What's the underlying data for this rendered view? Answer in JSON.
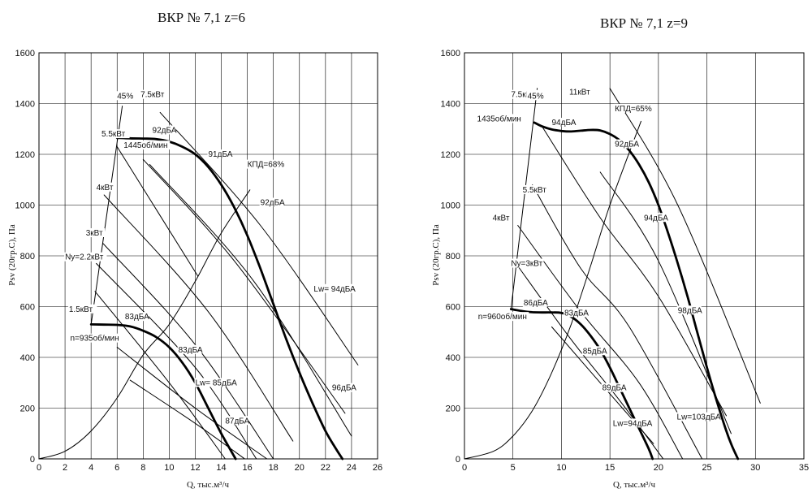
{
  "chart_data": [
    {
      "type": "line",
      "title": "ВКР № 7,1 z=6",
      "xlabel": "Q, тыс.м³/ч",
      "ylabel": "Psv (20гр.С), Па",
      "xlim": [
        0,
        26
      ],
      "ylim": [
        0,
        1600
      ],
      "xticks": [
        0,
        2,
        4,
        6,
        8,
        10,
        12,
        14,
        16,
        18,
        20,
        22,
        24,
        26
      ],
      "yticks": [
        0,
        200,
        400,
        600,
        800,
        1000,
        1200,
        1400,
        1600
      ],
      "grid": true,
      "series": [
        {
          "name": "1445об/мин",
          "style": "bold",
          "x": [
            6.0,
            7,
            8,
            9,
            10,
            11,
            12,
            13,
            14,
            15,
            16,
            17,
            18,
            19,
            20,
            21,
            22,
            22.8,
            23.3
          ],
          "y": [
            1265,
            1263,
            1262,
            1260,
            1250,
            1230,
            1200,
            1150,
            1080,
            990,
            880,
            750,
            610,
            470,
            340,
            220,
            110,
            40,
            0
          ]
        },
        {
          "name": "n=935об/мин",
          "style": "bold",
          "x": [
            4.0,
            5,
            6,
            7,
            8,
            9,
            10,
            11,
            12,
            13,
            14,
            15.1
          ],
          "y": [
            530,
            529,
            528,
            522,
            505,
            480,
            440,
            380,
            300,
            200,
            100,
            0
          ]
        },
        {
          "name": "КПД=68%",
          "style": "thin",
          "x": [
            0,
            2,
            4,
            6,
            8,
            10,
            12,
            14,
            16.2
          ],
          "y": [
            0,
            30,
            110,
            240,
            410,
            530,
            700,
            890,
            1060
          ]
        },
        {
          "name": "45%",
          "style": "thin",
          "x": [
            4.0,
            6.4
          ],
          "y": [
            530,
            1390
          ]
        },
        {
          "name": "5.5кВт",
          "style": "thin",
          "x": [
            6.0,
            12.2
          ],
          "y": [
            1230,
            720
          ]
        },
        {
          "name": "7.5кВт",
          "style": "thin",
          "x": [
            9.3,
            17.0,
            24.5
          ],
          "y": [
            1365,
            920,
            370
          ]
        },
        {
          "name": "4кВт",
          "style": "thin",
          "x": [
            5.0,
            13.0,
            19.5
          ],
          "y": [
            1040,
            580,
            70
          ]
        },
        {
          "name": "3кВт",
          "style": "thin",
          "x": [
            4.9,
            12.0,
            18.0
          ],
          "y": [
            850,
            450,
            0
          ]
        },
        {
          "name": "Ny=2.2кВт",
          "style": "thin",
          "x": [
            4.4,
            12.0,
            16.7
          ],
          "y": [
            770,
            360,
            0
          ]
        },
        {
          "name": "1.5кВт",
          "style": "thin",
          "x": [
            4.3,
            10.0,
            14.3
          ],
          "y": [
            660,
            300,
            0
          ]
        },
        {
          "name": "Lw= 94дБА",
          "style": "thin",
          "x": [
            8.0,
            15.0,
            23.5
          ],
          "y": [
            1180,
            780,
            180
          ]
        },
        {
          "name": "96дБА",
          "style": "thin",
          "x": [
            8.5,
            16.5,
            24.0
          ],
          "y": [
            1160,
            700,
            90
          ]
        },
        {
          "name": "Lw= 85дБА",
          "style": "thin",
          "x": [
            6.0,
            12.0,
            17.5
          ],
          "y": [
            440,
            200,
            0
          ]
        },
        {
          "name": "87дБА",
          "style": "thin",
          "x": [
            7.0,
            12.0,
            15.8
          ],
          "y": [
            310,
            140,
            0
          ]
        }
      ],
      "annotations": [
        {
          "text": "45%",
          "x": 6.0,
          "y": 1420
        },
        {
          "text": "7.5кВт",
          "x": 7.8,
          "y": 1425
        },
        {
          "text": "5.5кВт",
          "x": 4.8,
          "y": 1270
        },
        {
          "text": "92дБА",
          "x": 8.7,
          "y": 1285
        },
        {
          "text": "1445об/мин",
          "x": 6.5,
          "y": 1225
        },
        {
          "text": "91дБА",
          "x": 13.0,
          "y": 1190
        },
        {
          "text": "КПД=68%",
          "x": 16.0,
          "y": 1150
        },
        {
          "text": "4кВт",
          "x": 4.4,
          "y": 1060
        },
        {
          "text": "92дБА",
          "x": 17.0,
          "y": 1000
        },
        {
          "text": "3кВт",
          "x": 3.6,
          "y": 880
        },
        {
          "text": "Ny=2.2кВт",
          "x": 2.0,
          "y": 785
        },
        {
          "text": "Lw= 94дБА",
          "x": 21.1,
          "y": 660
        },
        {
          "text": "1.5кВт",
          "x": 2.3,
          "y": 580
        },
        {
          "text": "83дБА",
          "x": 6.6,
          "y": 550
        },
        {
          "text": "n=935об/мин",
          "x": 2.4,
          "y": 465
        },
        {
          "text": "83дБА",
          "x": 10.7,
          "y": 420
        },
        {
          "text": "Lw= 85дБА",
          "x": 12.0,
          "y": 290
        },
        {
          "text": "96дБА",
          "x": 22.5,
          "y": 270
        },
        {
          "text": "87дБА",
          "x": 14.3,
          "y": 140
        }
      ]
    },
    {
      "type": "line",
      "title": "ВКР № 7,1 z=9",
      "xlabel": "Q, тыс.м³/ч",
      "ylabel": "Psv (20гр.С), Па",
      "xlim": [
        0,
        35
      ],
      "ylim": [
        0,
        1600
      ],
      "xticks": [
        0,
        5,
        10,
        15,
        20,
        25,
        30,
        35
      ],
      "yticks": [
        0,
        200,
        400,
        600,
        800,
        1000,
        1200,
        1400,
        1600
      ],
      "grid": true,
      "series": [
        {
          "name": "1435об/мин",
          "style": "bold",
          "x": [
            7.2,
            8,
            9,
            10,
            11,
            12,
            13,
            14,
            15,
            16,
            17,
            18,
            19,
            20,
            21,
            22,
            23,
            24,
            25,
            26,
            27,
            27.6,
            28.2
          ],
          "y": [
            1325,
            1310,
            1298,
            1292,
            1290,
            1293,
            1296,
            1294,
            1280,
            1255,
            1215,
            1160,
            1090,
            1000,
            890,
            770,
            640,
            500,
            360,
            230,
            110,
            50,
            0
          ]
        },
        {
          "name": "n=960об/мин",
          "style": "bold",
          "x": [
            4.8,
            6,
            7,
            8,
            9,
            10,
            11,
            12,
            13,
            14,
            15,
            16,
            17,
            18,
            19,
            19.4
          ],
          "y": [
            590,
            582,
            578,
            577,
            577,
            575,
            560,
            530,
            485,
            430,
            360,
            280,
            200,
            120,
            40,
            0
          ]
        },
        {
          "name": "КПД=65%",
          "style": "thin",
          "x": [
            0,
            3,
            5,
            7,
            9,
            11,
            13,
            15,
            18.2
          ],
          "y": [
            0,
            30,
            90,
            190,
            340,
            530,
            760,
            1000,
            1330
          ]
        },
        {
          "name": "45%",
          "style": "thin",
          "x": [
            4.8,
            7.5
          ],
          "y": [
            590,
            1460
          ]
        },
        {
          "name": "11кВт",
          "style": "thin",
          "x": [
            15.0,
            22.0,
            30.5
          ],
          "y": [
            1460,
            1000,
            220
          ]
        },
        {
          "name": "7.5кВт",
          "style": "thin",
          "x": [
            8.0,
            14.0,
            20.0,
            27.0
          ],
          "y": [
            1310,
            950,
            640,
            170
          ]
        },
        {
          "name": "5.5кВт",
          "style": "thin",
          "x": [
            7.0,
            12.0,
            17.0,
            24.5
          ],
          "y": [
            1080,
            750,
            520,
            0
          ]
        },
        {
          "name": "4кВт",
          "style": "thin",
          "x": [
            5.5,
            12.0,
            18.0,
            22.5
          ],
          "y": [
            920,
            580,
            300,
            0
          ]
        },
        {
          "name": "Ny=3кВт",
          "style": "thin",
          "x": [
            5.5,
            11.0,
            16.0,
            20.5
          ],
          "y": [
            760,
            470,
            230,
            0
          ]
        },
        {
          "name": "Lw=103дБА",
          "style": "thin",
          "x": [
            14.0,
            20.0,
            27.5
          ],
          "y": [
            1130,
            780,
            100
          ]
        },
        {
          "name": "Lw=94дБА",
          "style": "thin",
          "x": [
            9.0,
            14.0,
            19.5
          ],
          "y": [
            520,
            300,
            60
          ]
        }
      ],
      "annotations": [
        {
          "text": "7.5кВт",
          "x": 4.8,
          "y": 1425
        },
        {
          "text": "45%",
          "x": 6.5,
          "y": 1420
        },
        {
          "text": "11кВт",
          "x": 10.8,
          "y": 1435
        },
        {
          "text": "КПД=65%",
          "x": 15.5,
          "y": 1370
        },
        {
          "text": "1435об/мин",
          "x": 1.3,
          "y": 1330
        },
        {
          "text": "94дБА",
          "x": 9.0,
          "y": 1315
        },
        {
          "text": "92дБА",
          "x": 15.5,
          "y": 1230
        },
        {
          "text": "5.5кВт",
          "x": 6.0,
          "y": 1050
        },
        {
          "text": "94дБА",
          "x": 18.5,
          "y": 940
        },
        {
          "text": "4кВт",
          "x": 2.9,
          "y": 940
        },
        {
          "text": "Ny=3кВт",
          "x": 4.8,
          "y": 760
        },
        {
          "text": "86дБА",
          "x": 6.1,
          "y": 605
        },
        {
          "text": "98дБА",
          "x": 22.0,
          "y": 575
        },
        {
          "text": "n=960об/мин",
          "x": 1.4,
          "y": 550
        },
        {
          "text": "83дБА",
          "x": 10.3,
          "y": 565
        },
        {
          "text": "85дБА",
          "x": 12.2,
          "y": 415
        },
        {
          "text": "89дБА",
          "x": 14.2,
          "y": 270
        },
        {
          "text": "Lw=94дБА",
          "x": 15.3,
          "y": 130
        },
        {
          "text": "Lw=103дБА",
          "x": 21.9,
          "y": 155
        }
      ]
    }
  ]
}
